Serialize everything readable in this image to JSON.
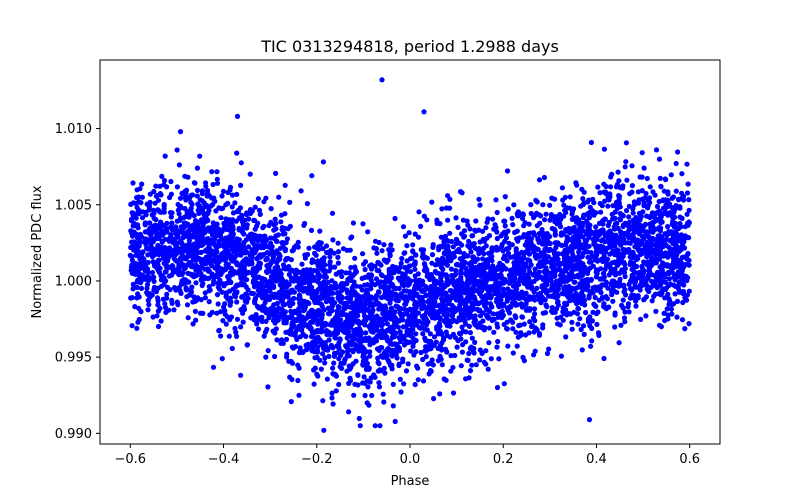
{
  "chart_data": {
    "type": "scatter",
    "title": "TIC 0313294818, period 1.2988 days",
    "xlabel": "Phase",
    "ylabel": "Normalized PDC flux",
    "xlim": [
      -0.665,
      0.665
    ],
    "ylim": [
      0.9893,
      1.0145
    ],
    "x_ticks": [
      -0.6,
      -0.4,
      -0.2,
      0.0,
      0.2,
      0.4,
      0.6
    ],
    "x_tick_labels": [
      "−0.6",
      "−0.4",
      "−0.2",
      "0.0",
      "0.2",
      "0.4",
      "0.6"
    ],
    "y_ticks": [
      0.99,
      0.995,
      1.0,
      1.005,
      1.01
    ],
    "y_tick_labels": [
      "0.990",
      "0.995",
      "1.000",
      "1.005",
      "1.010"
    ],
    "grid": false,
    "series": [
      {
        "name": "PDC flux",
        "color": "#0000ff",
        "marker": "circle",
        "n_points": 5200,
        "phase_range": [
          -0.6,
          0.6
        ],
        "model": {
          "baseline": 1.0,
          "components": [
            {
              "amplitude": 0.0022,
              "harmonic": 1,
              "phase_offset": 0.45
            },
            {
              "amplitude": 0.0006,
              "harmonic": 2,
              "phase_offset": 0.1
            }
          ],
          "noise_sigma": 0.0023
        },
        "highlighted_points": [
          {
            "x": -0.06,
            "y": 1.0132
          },
          {
            "x": -0.185,
            "y": 0.9902
          },
          {
            "x": 0.03,
            "y": 1.0111
          },
          {
            "x": -0.37,
            "y": 1.0108
          },
          {
            "x": 0.385,
            "y": 0.9909
          }
        ]
      }
    ]
  }
}
